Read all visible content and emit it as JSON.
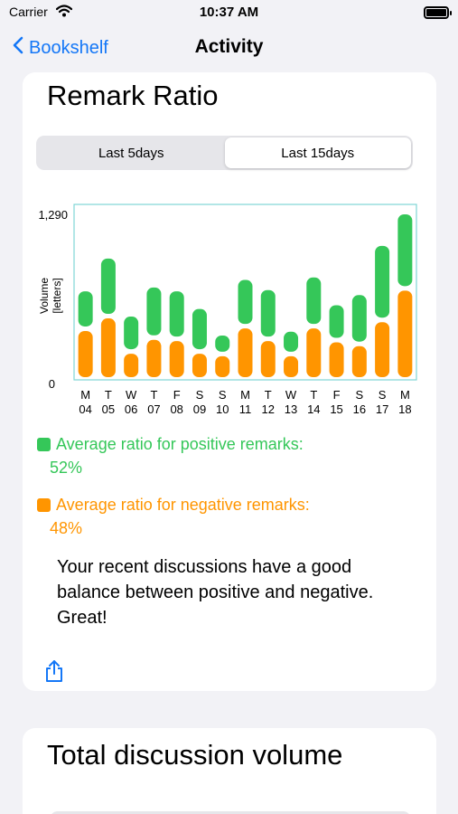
{
  "status_bar": {
    "carrier": "Carrier",
    "time": "10:37 AM"
  },
  "nav": {
    "back_label": "Bookshelf",
    "title": "Activity"
  },
  "remark_card": {
    "title": "Remark Ratio",
    "tabs": [
      {
        "label": "Last 5days",
        "selected": false
      },
      {
        "label": "Last 15days",
        "selected": true
      }
    ],
    "legend": {
      "positive_label": "Average ratio for positive remarks:",
      "positive_value": "52%",
      "negative_label": "Average ratio for negative remarks:",
      "negative_value": "48%"
    },
    "summary": "Your recent discussions have a good balance between positive and negative. Great!"
  },
  "volume_card": {
    "title": "Total discussion volume"
  },
  "colors": {
    "positive": "#35c759",
    "negative": "#ff9500",
    "accent": "#1477f7",
    "frame": "#7fd6d6"
  },
  "chart_data": {
    "type": "bar",
    "stacked": true,
    "ylabel": "Volume [letters]",
    "ylim": [
      0,
      1290
    ],
    "yticks": [
      "1,290",
      "0"
    ],
    "categories": [
      {
        "day": "M",
        "date": "04"
      },
      {
        "day": "T",
        "date": "05"
      },
      {
        "day": "W",
        "date": "06"
      },
      {
        "day": "T",
        "date": "07"
      },
      {
        "day": "F",
        "date": "08"
      },
      {
        "day": "S",
        "date": "09"
      },
      {
        "day": "S",
        "date": "10"
      },
      {
        "day": "M",
        "date": "11"
      },
      {
        "day": "T",
        "date": "12"
      },
      {
        "day": "W",
        "date": "13"
      },
      {
        "day": "T",
        "date": "14"
      },
      {
        "day": "F",
        "date": "15"
      },
      {
        "day": "S",
        "date": "16"
      },
      {
        "day": "S",
        "date": "17"
      },
      {
        "day": "M",
        "date": "18"
      }
    ],
    "series": [
      {
        "values": [
          380,
          480,
          200,
          310,
          300,
          200,
          180,
          400,
          300,
          180,
          400,
          290,
          260,
          450,
          700
        ]
      },
      {
        "values": [
          300,
          460,
          280,
          400,
          380,
          340,
          150,
          370,
          390,
          180,
          390,
          280,
          390,
          590,
          590
        ]
      }
    ]
  }
}
